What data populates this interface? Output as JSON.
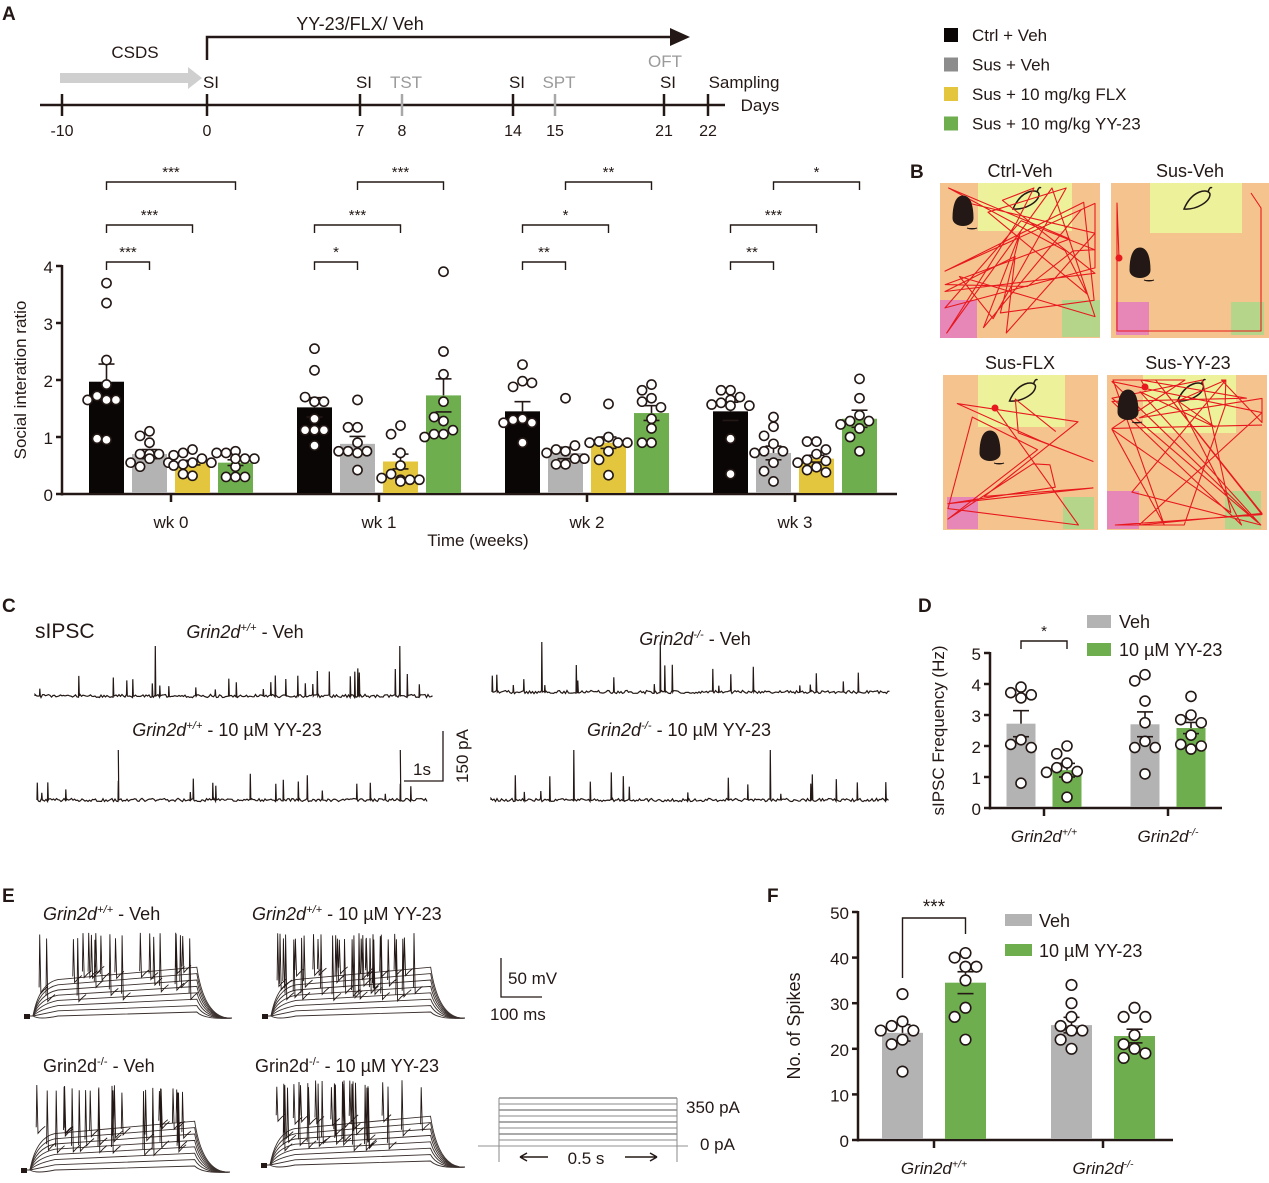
{
  "panel_letters": [
    "A",
    "B",
    "C",
    "D",
    "E",
    "F"
  ],
  "timeline": {
    "treatment_label": "YY-23/FLX/ Veh",
    "csds_label": "CSDS",
    "axis_unit": "Days",
    "ticks": [
      {
        "day": "-10",
        "event": ""
      },
      {
        "day": "0",
        "event": "SI"
      },
      {
        "day": "7",
        "event": "SI"
      },
      {
        "day": "8",
        "event": "TST"
      },
      {
        "day": "14",
        "event": "SI"
      },
      {
        "day": "15",
        "event": "SPT"
      },
      {
        "day": "21",
        "event": "SI"
      },
      {
        "day": "22",
        "event": "Sampling"
      }
    ],
    "extra_event": {
      "day": "21",
      "label": "OFT"
    }
  },
  "legend_A": [
    {
      "label": "Ctrl + Veh",
      "color": "#0a0606"
    },
    {
      "label": "Sus + Veh",
      "color": "#8c8c8c"
    },
    {
      "label": "Sus + 10 mg/kg FLX",
      "color": "#e3c63e"
    },
    {
      "label": "Sus + 10 mg/kg YY-23",
      "color": "#6fae4f"
    }
  ],
  "arenas": {
    "titles": [
      "Ctrl-Veh",
      "Sus-Veh",
      "Sus-FLX",
      "Sus-YY-23"
    ],
    "colors": {
      "arena": "#f5c48e",
      "interaction_zone": "#ecf19a",
      "corner_left": "#e787b8",
      "corner_right": "#b5d68a",
      "track": "#e8191e"
    }
  },
  "sipsc": {
    "title": "sIPSC",
    "traces": [
      {
        "gene": "Grin2d",
        "sup": "+/+",
        "suffix": " - Veh"
      },
      {
        "gene": "Grin2d",
        "sup": "-/-",
        "suffix": " - Veh"
      },
      {
        "gene": "Grin2d",
        "sup": "+/+",
        "suffix": " - 10 µM YY-23"
      },
      {
        "gene": "Grin2d",
        "sup": "-/-",
        "suffix": " - 10 µM YY-23"
      }
    ],
    "scale_time": "1s",
    "scale_current": "150 pA"
  },
  "ap": {
    "traces": [
      {
        "gene": "Grin2d",
        "sup": "+/+",
        "suffix": " - Veh",
        "italic": true
      },
      {
        "gene": "Grin2d",
        "sup": "+/+",
        "suffix": " - 10 µM YY-23",
        "italic": true
      },
      {
        "gene": "Grin2d",
        "sup": "-/-",
        "suffix": " - Veh",
        "italic": false
      },
      {
        "gene": "Grin2d",
        "sup": "-/-",
        "suffix": " - 10 µM YY-23",
        "italic": false
      }
    ],
    "scale_voltage": "50 mV",
    "scale_time": "100 ms",
    "step_top": "350 pA",
    "step_bottom": "0 pA",
    "step_duration": "0.5 s"
  },
  "chart_data": [
    {
      "id": "A",
      "type": "bar",
      "title": "",
      "xlabel": "Time (weeks)",
      "ylabel": "Social interation ratio",
      "ylim": [
        0,
        4
      ],
      "yticks": [
        0,
        1,
        2,
        3,
        4
      ],
      "categories": [
        "wk 0",
        "wk 1",
        "wk 2",
        "wk 3"
      ],
      "series": [
        {
          "name": "Ctrl + Veh",
          "color": "#0a0606",
          "values": [
            1.97,
            1.52,
            1.45,
            1.45
          ],
          "sem": [
            0.31,
            0.17,
            0.17,
            0.16
          ],
          "points": [
            [
              3.7,
              3.35,
              2.35,
              1.92,
              1.65,
              1.72,
              1.65,
              1.65,
              0.95,
              0.97
            ],
            [
              2.55,
              2.17,
              1.62,
              1.7,
              1.62,
              1.32,
              1.12,
              1.12,
              1.12,
              0.85
            ],
            [
              2.27,
              1.98,
              1.88,
              1.95,
              1.32,
              1.3,
              1.25,
              1.25,
              0.9
            ],
            [
              1.82,
              1.82,
              1.7,
              1.65,
              1.6,
              1.57,
              1.55,
              1.55,
              0.97,
              0.35
            ]
          ]
        },
        {
          "name": "Sus + Veh",
          "color": "#b3b3b3",
          "values": [
            0.7,
            0.88,
            0.72,
            0.72
          ],
          "sem": [
            0.08,
            0.13,
            0.1,
            0.12
          ],
          "points": [
            [
              1.1,
              1.02,
              0.9,
              0.7,
              0.7,
              0.7,
              0.55,
              0.55,
              0.62,
              0.48
            ],
            [
              1.65,
              1.17,
              1.17,
              0.9,
              0.75,
              0.75,
              0.75,
              0.72,
              0.42
            ],
            [
              1.68,
              0.75,
              0.78,
              0.85,
              0.72,
              0.62,
              0.52,
              0.52,
              0.62
            ],
            [
              1.35,
              1.18,
              1.02,
              0.88,
              0.75,
              0.75,
              0.72,
              0.55,
              0.4,
              0.22
            ]
          ]
        },
        {
          "name": "Sus + 10 mg/kg FLX",
          "color": "#e3c63e",
          "values": [
            0.55,
            0.57,
            0.9,
            0.62
          ],
          "sem": [
            0.04,
            0.13,
            0.1,
            0.06
          ],
          "points": [
            [
              0.78,
              0.72,
              0.62,
              0.68,
              0.55,
              0.52,
              0.55,
              0.32,
              0.35,
              0.5
            ],
            [
              1.2,
              1.05,
              0.72,
              0.5,
              0.35,
              0.25,
              0.25,
              0.28,
              0.25,
              0.22
            ],
            [
              1.58,
              1.0,
              0.92,
              0.9,
              0.9,
              0.9,
              0.75,
              0.6,
              0.33
            ],
            [
              0.92,
              0.92,
              0.78,
              0.7,
              0.6,
              0.58,
              0.55,
              0.47,
              0.42,
              0.38
            ]
          ]
        },
        {
          "name": "Sus + 10 mg/kg YY-23",
          "color": "#6fae4f",
          "values": [
            0.55,
            1.73,
            1.42,
            1.32
          ],
          "sem": [
            0.05,
            0.29,
            0.13,
            0.15
          ],
          "points": [
            [
              0.75,
              0.72,
              0.62,
              0.72,
              0.62,
              0.48,
              0.3,
              0.3,
              0.3,
              0.62
            ],
            [
              3.9,
              2.5,
              2.1,
              1.62,
              1.28,
              1.05,
              1.35,
              1.05,
              1.12,
              1.0
            ],
            [
              1.92,
              1.82,
              1.68,
              1.62,
              1.52,
              1.32,
              1.15,
              0.9,
              0.9
            ],
            [
              2.02,
              1.68,
              1.38,
              1.28,
              1.28,
              1.22,
              1.15,
              1.0,
              0.75
            ]
          ]
        }
      ],
      "significance": [
        {
          "group": "wk 0",
          "from": 0,
          "to": 1,
          "label": "***"
        },
        {
          "group": "wk 0",
          "from": 0,
          "to": 2,
          "label": "***"
        },
        {
          "group": "wk 0",
          "from": 0,
          "to": 3,
          "label": "***"
        },
        {
          "group": "wk 1",
          "from": 0,
          "to": 1,
          "label": "*"
        },
        {
          "group": "wk 1",
          "from": 0,
          "to": 2,
          "label": "***"
        },
        {
          "group": "wk 1",
          "from": 1,
          "to": 3,
          "label": "***"
        },
        {
          "group": "wk 2",
          "from": 0,
          "to": 1,
          "label": "**"
        },
        {
          "group": "wk 2",
          "from": 0,
          "to": 2,
          "label": "*"
        },
        {
          "group": "wk 2",
          "from": 1,
          "to": 3,
          "label": "**"
        },
        {
          "group": "wk 3",
          "from": 0,
          "to": 1,
          "label": "**"
        },
        {
          "group": "wk 3",
          "from": 0,
          "to": 2,
          "label": "***"
        },
        {
          "group": "wk 3",
          "from": 1,
          "to": 3,
          "label": "*"
        }
      ],
      "legend": "top-right",
      "grid": false
    },
    {
      "id": "D",
      "type": "bar",
      "title": "",
      "xlabel": "",
      "ylabel": "sIPSC Frequency (Hz)",
      "ylim": [
        0,
        5
      ],
      "yticks": [
        0,
        1,
        2,
        3,
        4,
        5
      ],
      "categories": [
        {
          "gene": "Grin2d",
          "sup": "+/+"
        },
        {
          "gene": "Grin2d",
          "sup": "-/-"
        }
      ],
      "series": [
        {
          "name": "Veh",
          "color": "#b3b3b3",
          "values": [
            2.72,
            2.7
          ],
          "sem": [
            0.42,
            0.4
          ],
          "points": [
            [
              3.9,
              3.72,
              3.65,
              3.55,
              2.2,
              2.05,
              1.95,
              0.8
            ],
            [
              4.3,
              4.1,
              3.45,
              2.75,
              2.15,
              1.95,
              1.95,
              1.1
            ]
          ]
        },
        {
          "name": "10 µM YY-23",
          "color": "#6fae4f",
          "values": [
            1.22,
            2.58
          ],
          "sem": [
            0.22,
            0.18
          ],
          "points": [
            [
              2.0,
              1.75,
              1.45,
              1.3,
              1.18,
              1.15,
              0.98,
              0.35
            ],
            [
              3.6,
              3.0,
              2.85,
              2.75,
              2.35,
              2.05,
              1.9,
              2.0
            ]
          ]
        }
      ],
      "significance": [
        {
          "group": 0,
          "label": "*"
        }
      ],
      "legend": "top-right",
      "grid": false
    },
    {
      "id": "F",
      "type": "bar",
      "title": "",
      "xlabel": "",
      "ylabel": "No. of Spikes",
      "ylim": [
        0,
        50
      ],
      "yticks": [
        0,
        10,
        20,
        30,
        40,
        50
      ],
      "categories": [
        {
          "gene": "Grin2d",
          "sup": "+/+"
        },
        {
          "gene": "Grin2d",
          "sup": "-/-"
        }
      ],
      "series": [
        {
          "name": "Veh",
          "color": "#b3b3b3",
          "values": [
            23.5,
            25.2
          ],
          "sem": [
            1.8,
            1.7
          ],
          "points": [
            [
              32,
              26,
              25,
              24,
              24,
              22,
              21,
              15
            ],
            [
              34,
              30,
              27,
              25,
              24,
              24,
              22,
              20
            ]
          ]
        },
        {
          "name": "10 µM YY-23",
          "color": "#6fae4f",
          "values": [
            34.5,
            22.8
          ],
          "sem": [
            2.4,
            1.5
          ],
          "points": [
            [
              41,
              40,
              38,
              38,
              35,
              29,
              27,
              22
            ],
            [
              29,
              27,
              27,
              23,
              21,
              20,
              19,
              18
            ]
          ]
        }
      ],
      "significance": [
        {
          "group": 0,
          "label": "***"
        }
      ],
      "legend": "top-right",
      "grid": false
    }
  ]
}
